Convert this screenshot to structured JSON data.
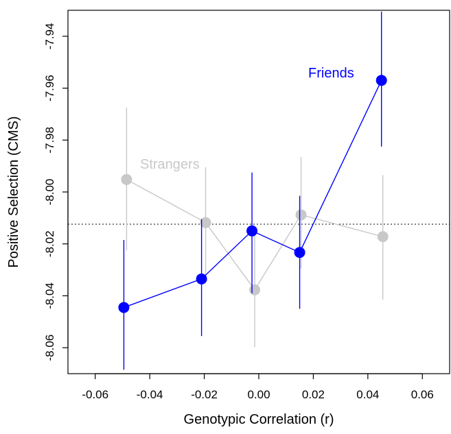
{
  "chart_data": {
    "type": "scatter",
    "xlabel": "Genotypic Correlation (r)",
    "ylabel": "Positive Selection (CMS)",
    "xlim": [
      -0.07,
      0.07
    ],
    "ylim": [
      -8.07,
      -7.93
    ],
    "x_ticks": [
      -0.06,
      -0.04,
      -0.02,
      0.0,
      0.02,
      0.04,
      0.06
    ],
    "x_tick_labels": [
      "-0.06",
      "-0.04",
      "-0.02",
      "0.00",
      "0.02",
      "0.04",
      "0.06"
    ],
    "y_ticks": [
      -8.06,
      -8.04,
      -8.02,
      -8.0,
      -7.98,
      -7.96,
      -7.94
    ],
    "y_tick_labels": [
      "-8.06",
      "-8.04",
      "-8.02",
      "-8.00",
      "-7.98",
      "-7.96",
      "-7.94"
    ],
    "reference_line": {
      "y": -8.0124,
      "style": "dotted"
    },
    "series": [
      {
        "name": "Strangers",
        "color": "#c8c8c8",
        "points": [
          {
            "x": -0.0485,
            "y": -7.9952,
            "lo": -8.0225,
            "hi": -7.9675
          },
          {
            "x": -0.0195,
            "y": -8.0118,
            "lo": -8.0345,
            "hi": -7.9905
          },
          {
            "x": -0.0015,
            "y": -8.0377,
            "lo": -8.0598,
            "hi": -8.0145
          },
          {
            "x": 0.0155,
            "y": -8.0088,
            "lo": -8.0295,
            "hi": -7.9865
          },
          {
            "x": 0.0455,
            "y": -8.0172,
            "lo": -8.0415,
            "hi": -7.9935
          }
        ]
      },
      {
        "name": "Friends",
        "color": "#0000ff",
        "points": [
          {
            "x": -0.0495,
            "y": -8.0445,
            "lo": -8.0685,
            "hi": -8.0185
          },
          {
            "x": -0.021,
            "y": -8.0335,
            "lo": -8.0555,
            "hi": -8.0105
          },
          {
            "x": -0.0025,
            "y": -8.015,
            "lo": -8.039,
            "hi": -7.9925
          },
          {
            "x": 0.015,
            "y": -8.0233,
            "lo": -8.045,
            "hi": -8.0015
          },
          {
            "x": 0.045,
            "y": -7.957,
            "lo": -7.9825,
            "hi": -7.9305
          }
        ]
      }
    ]
  }
}
